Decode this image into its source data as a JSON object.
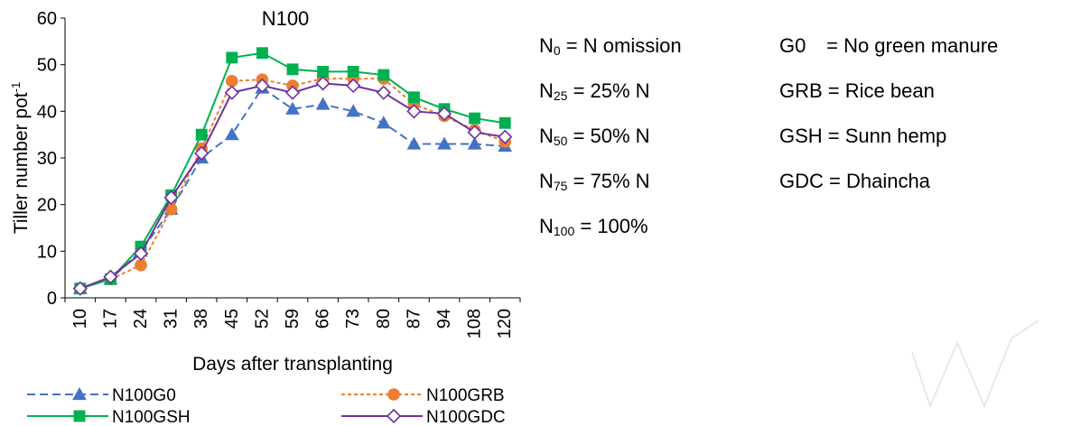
{
  "chart_data": {
    "type": "line",
    "title": "N100",
    "xlabel": "Days after transplanting",
    "ylabel": "Tiller number pot",
    "ylabel_superscript": "-1",
    "ylim": [
      0,
      60
    ],
    "yticks": [
      0,
      10,
      20,
      30,
      40,
      50,
      60
    ],
    "categories": [
      "10",
      "17",
      "24",
      "31",
      "38",
      "45",
      "52",
      "59",
      "66",
      "73",
      "80",
      "87",
      "94",
      "108",
      "120"
    ],
    "grid": false,
    "legend_position": "bottom",
    "series": [
      {
        "name": "N100G0",
        "color": "#4472C4",
        "dash": "dashed",
        "marker": "triangle",
        "values": [
          2,
          4,
          10,
          19,
          30,
          35,
          45,
          40.5,
          41.5,
          40,
          37.5,
          33,
          33,
          33,
          32.5
        ]
      },
      {
        "name": "N100GRB",
        "color": "#ED7D31",
        "dash": "dotted",
        "marker": "circle",
        "values": [
          2,
          4,
          7,
          19,
          32,
          46.5,
          46.8,
          45.5,
          47,
          47,
          47,
          41.5,
          39,
          36,
          33.5
        ]
      },
      {
        "name": "N100GSH",
        "color": "#00B050",
        "dash": "solid",
        "marker": "square",
        "values": [
          2,
          4,
          11,
          22,
          35,
          51.5,
          52.5,
          49,
          48.5,
          48.5,
          47.8,
          43,
          40.5,
          38.5,
          37.5
        ]
      },
      {
        "name": "N100GDC",
        "color": "#7030A0",
        "dash": "solid",
        "marker": "diamond",
        "values": [
          2,
          4.5,
          9.5,
          21.5,
          31,
          44,
          45.5,
          44,
          46,
          45.5,
          44,
          40,
          39.5,
          35.5,
          34.5
        ]
      }
    ]
  },
  "definitions": {
    "left": [
      {
        "base": "N",
        "sub": "0",
        "rest": " = N omission"
      },
      {
        "base": "N",
        "sub": "25",
        "rest": " = 25% N"
      },
      {
        "base": "N",
        "sub": "50",
        "rest": " = 50% N"
      },
      {
        "base": "N",
        "sub": "75",
        "rest": " = 75% N"
      },
      {
        "base": "N",
        "sub": "100",
        "rest": " = 100%"
      }
    ],
    "right": [
      {
        "code": "G0",
        "text": "= No green manure"
      },
      {
        "code": "GRB",
        "text": "= Rice bean"
      },
      {
        "code": "GSH",
        "text": "= Sunn hemp"
      },
      {
        "code": "GDC",
        "text": "= Dhaincha"
      }
    ]
  }
}
